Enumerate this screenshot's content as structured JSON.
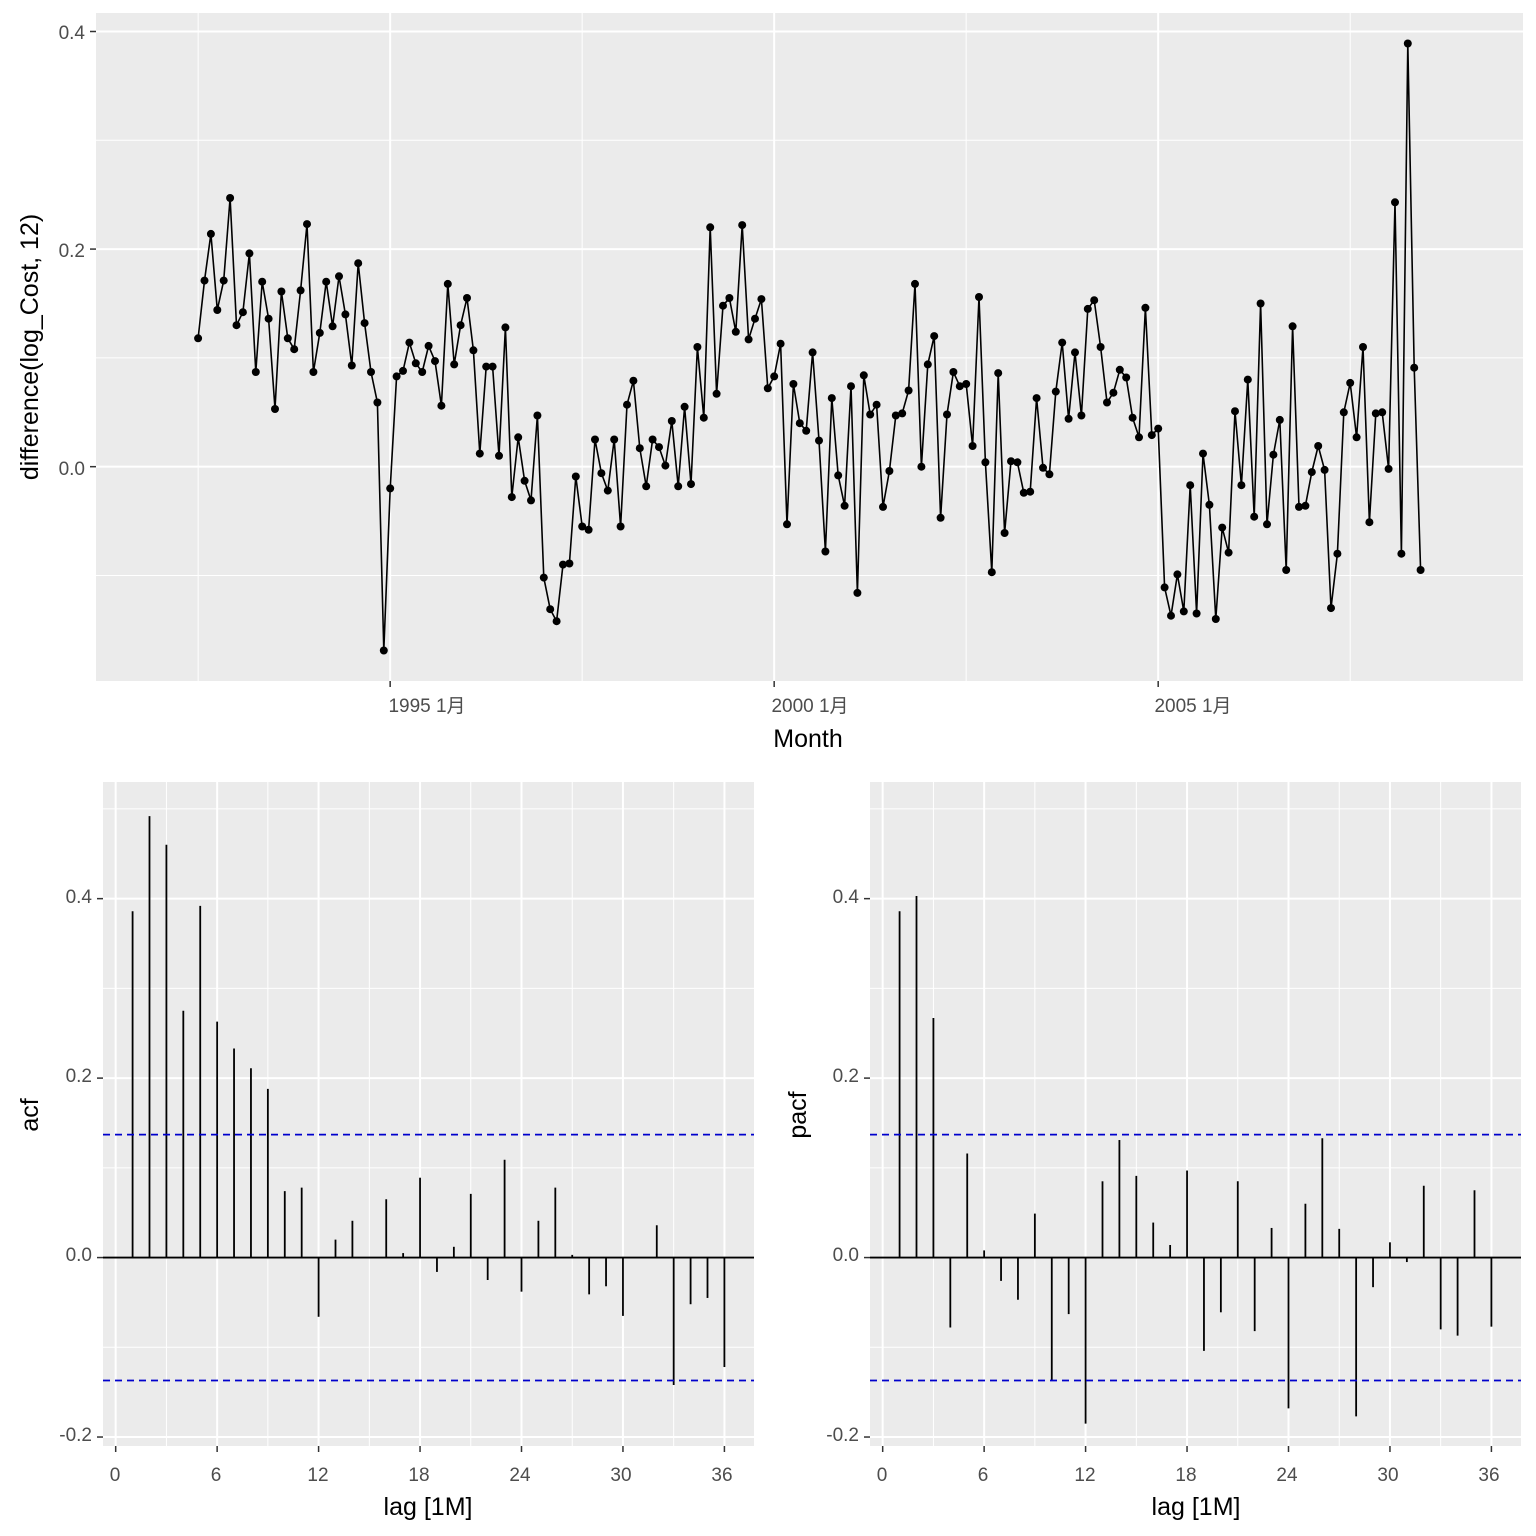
{
  "chart_data": [
    {
      "type": "line",
      "xlabel": "Month",
      "ylabel": "difference(log_Cost, 12)",
      "x_ticks": [
        "1995 1月",
        "2000 1月",
        "2005 1月"
      ],
      "x_tick_months": [
        1995.0,
        2000.0,
        2005.0
      ],
      "y_ticks": [
        "0.0",
        "0.2",
        "0.4"
      ],
      "y_tick_values": [
        0.0,
        0.2,
        0.4
      ],
      "xlim": [
        1991.17,
        2009.75
      ],
      "ylim": [
        -0.197,
        0.417
      ],
      "x_start": "1992 Jul",
      "frequency": "monthly",
      "grid": true,
      "points": true,
      "series_color": "#000000",
      "values": [
        0.118,
        0.171,
        0.214,
        0.144,
        0.171,
        0.247,
        0.13,
        0.142,
        0.196,
        0.087,
        0.17,
        0.136,
        0.053,
        0.161,
        0.118,
        0.108,
        0.162,
        0.223,
        0.087,
        0.123,
        0.17,
        0.129,
        0.175,
        0.14,
        0.093,
        0.187,
        0.132,
        0.087,
        0.059,
        -0.169,
        -0.02,
        0.083,
        0.088,
        0.114,
        0.095,
        0.087,
        0.111,
        0.097,
        0.056,
        0.168,
        0.094,
        0.13,
        0.155,
        0.107,
        0.012,
        0.092,
        0.092,
        0.01,
        0.128,
        -0.028,
        0.027,
        -0.013,
        -0.031,
        0.047,
        -0.102,
        -0.131,
        -0.142,
        -0.09,
        -0.089,
        -0.009,
        -0.055,
        -0.058,
        0.025,
        -0.006,
        -0.022,
        0.025,
        -0.055,
        0.057,
        0.079,
        0.017,
        -0.018,
        0.025,
        0.018,
        0.001,
        0.042,
        -0.018,
        0.055,
        -0.016,
        0.11,
        0.045,
        0.22,
        0.067,
        0.148,
        0.155,
        0.124,
        0.222,
        0.117,
        0.136,
        0.154,
        0.072,
        0.083,
        0.113,
        -0.053,
        0.076,
        0.04,
        0.033,
        0.105,
        0.024,
        -0.078,
        0.063,
        -0.008,
        -0.036,
        0.074,
        -0.116,
        0.084,
        0.048,
        0.057,
        -0.037,
        -0.004,
        0.047,
        0.049,
        0.07,
        0.168,
        0.0,
        0.094,
        0.12,
        -0.047,
        0.048,
        0.087,
        0.074,
        0.076,
        0.019,
        0.156,
        0.004,
        -0.097,
        0.086,
        -0.061,
        0.005,
        0.004,
        -0.024,
        -0.023,
        0.063,
        -0.001,
        -0.007,
        0.069,
        0.114,
        0.044,
        0.105,
        0.047,
        0.145,
        0.153,
        0.11,
        0.059,
        0.068,
        0.089,
        0.082,
        0.045,
        0.027,
        0.146,
        0.029,
        0.035,
        -0.111,
        -0.137,
        -0.099,
        -0.133,
        -0.017,
        -0.135,
        0.012,
        -0.035,
        -0.14,
        -0.056,
        -0.079,
        0.051,
        -0.017,
        0.08,
        -0.046,
        0.15,
        -0.053,
        0.011,
        0.043,
        -0.095,
        0.129,
        -0.037,
        -0.036,
        -0.005,
        0.019,
        -0.003,
        -0.13,
        -0.08,
        0.05,
        0.077,
        0.027,
        0.11,
        -0.051,
        0.049,
        0.05,
        -0.002,
        0.243,
        -0.08,
        0.389,
        0.091,
        -0.095
      ]
    },
    {
      "type": "bar",
      "xlabel": "lag [1M]",
      "ylabel": "acf",
      "x_ticks": [
        "0",
        "6",
        "12",
        "18",
        "24",
        "30",
        "36"
      ],
      "x_tick_values": [
        0,
        6,
        12,
        18,
        24,
        30,
        36
      ],
      "y_ticks": [
        "-0.2",
        "0.0",
        "0.2",
        "0.4"
      ],
      "y_tick_values": [
        -0.2,
        0.0,
        0.2,
        0.4
      ],
      "xlim": [
        -0.75,
        37.75
      ],
      "ylim": [
        -0.21,
        0.53
      ],
      "grid": true,
      "confidence_bound": 0.137,
      "confidence_color": "#0000cc",
      "lags": [
        1,
        2,
        3,
        4,
        5,
        6,
        7,
        8,
        9,
        10,
        11,
        12,
        13,
        14,
        15,
        16,
        17,
        18,
        19,
        20,
        21,
        22,
        23,
        24,
        25,
        26,
        27,
        28,
        29,
        30,
        31,
        32,
        33,
        34,
        35,
        36
      ],
      "values": [
        0.386,
        0.492,
        0.46,
        0.275,
        0.392,
        0.263,
        0.233,
        0.211,
        0.188,
        0.074,
        0.078,
        -0.066,
        0.02,
        0.041,
        0.0,
        0.065,
        0.005,
        0.089,
        -0.016,
        0.012,
        0.071,
        -0.025,
        0.109,
        -0.038,
        0.041,
        0.078,
        0.003,
        -0.041,
        -0.032,
        -0.065,
        0.0,
        0.036,
        -0.142,
        -0.052,
        -0.045,
        -0.122
      ]
    },
    {
      "type": "bar",
      "xlabel": "lag [1M]",
      "ylabel": "pacf",
      "x_ticks": [
        "0",
        "6",
        "12",
        "18",
        "24",
        "30",
        "36"
      ],
      "x_tick_values": [
        0,
        6,
        12,
        18,
        24,
        30,
        36
      ],
      "y_ticks": [
        "-0.2",
        "0.0",
        "0.2",
        "0.4"
      ],
      "y_tick_values": [
        -0.2,
        0.0,
        0.2,
        0.4
      ],
      "xlim": [
        -0.75,
        37.75
      ],
      "ylim": [
        -0.21,
        0.53
      ],
      "grid": true,
      "confidence_bound": 0.137,
      "confidence_color": "#0000cc",
      "lags": [
        1,
        2,
        3,
        4,
        5,
        6,
        7,
        8,
        9,
        10,
        11,
        12,
        13,
        14,
        15,
        16,
        17,
        18,
        19,
        20,
        21,
        22,
        23,
        24,
        25,
        26,
        27,
        28,
        29,
        30,
        31,
        32,
        33,
        34,
        35,
        36
      ],
      "values": [
        0.386,
        0.403,
        0.267,
        -0.078,
        0.116,
        0.008,
        -0.026,
        -0.047,
        0.049,
        -0.137,
        -0.063,
        -0.185,
        0.085,
        0.131,
        0.091,
        0.039,
        0.014,
        0.097,
        -0.104,
        -0.061,
        0.085,
        -0.082,
        0.033,
        -0.168,
        0.06,
        0.133,
        0.032,
        -0.177,
        -0.033,
        0.017,
        -0.005,
        0.08,
        -0.08,
        -0.087,
        0.075,
        -0.077
      ]
    }
  ]
}
